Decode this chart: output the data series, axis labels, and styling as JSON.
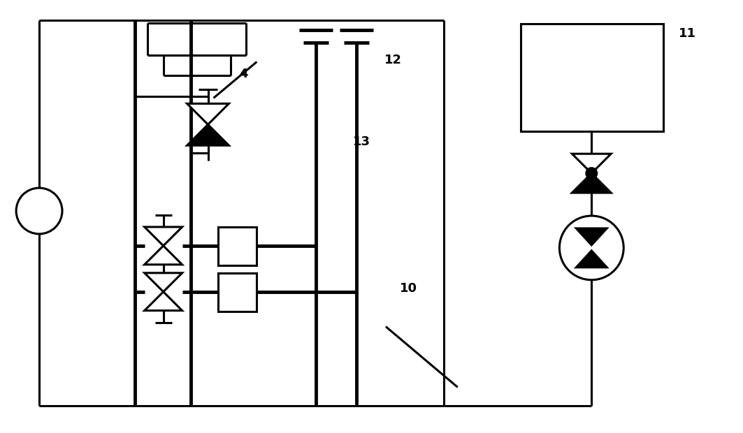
{
  "bg": "#ffffff",
  "lc": "#000000",
  "lw": 2.2,
  "tlw": 3.5,
  "fig_w": 10.63,
  "fig_h": 6.2,
  "dpi": 100
}
